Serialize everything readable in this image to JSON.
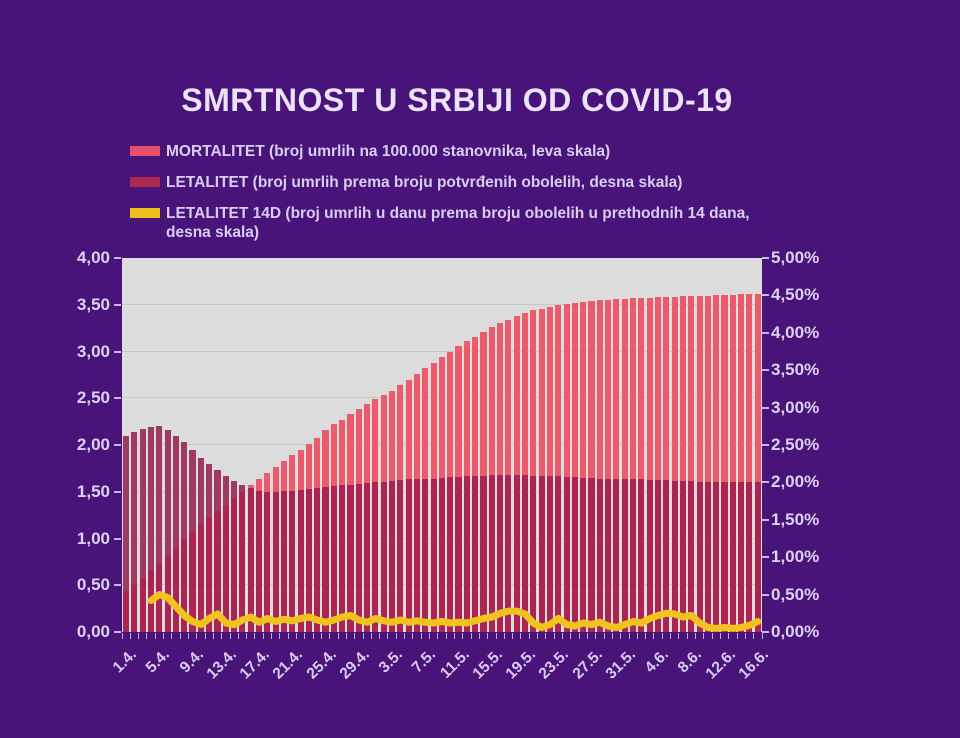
{
  "title": "SMRTNOST U SRBIJI OD COVID-19",
  "background_color": "#481479",
  "text_color": "#d9cdf0",
  "legend": {
    "items": [
      {
        "swatch": "mortalitet-swatch",
        "color": "#e8506a",
        "label": "MORTALITET (broj umrlih na 100.000 stanovnika, leva skala)"
      },
      {
        "swatch": "letalitet-swatch",
        "color": "#aa2a52",
        "label": "LETALITET (broj umrlih prema broju potvrđenih obolelih, desna skala)"
      },
      {
        "swatch": "letalitet-14d-swatch",
        "color": "#f0c020",
        "label": "LETALITET 14D (broj umrlih u danu prema broju obolelih u prethodnih 14 dana, desna skala)"
      }
    ]
  },
  "chart_data": {
    "type": "bar",
    "subtype": "overlaid daily bars (two scales) + line",
    "title": "SMRTNOST U SRBIJI OD COVID-19",
    "plot_background": "#dcdcdc",
    "gridlines": "horizontal every 0.5 of left axis",
    "overlap_color": "#ac2452",
    "left_axis": {
      "min": 0,
      "max": 4,
      "tick_labels": [
        "4,00",
        "3,50",
        "3,00",
        "2,50",
        "2,00",
        "1,50",
        "1,00",
        "0,50",
        "0,00"
      ]
    },
    "right_axis": {
      "min": 0,
      "max": 5,
      "tick_labels": [
        "5,00%",
        "4,50%",
        "4,00%",
        "3,50%",
        "3,00%",
        "2,50%",
        "2,00%",
        "1,50%",
        "1,00%",
        "0,50%",
        "0,00%"
      ]
    },
    "x_tick_labels": [
      "1.4.",
      "5.4.",
      "9.4.",
      "13.4.",
      "17.4.",
      "21.4.",
      "25.4.",
      "29.4.",
      "3.5.",
      "7.5.",
      "11.5.",
      "15.5.",
      "19.5.",
      "23.5.",
      "27.5.",
      "31.5.",
      "4.6.",
      "8.6.",
      "12.6.",
      "16.6."
    ],
    "x_label_every_n_days": 4,
    "series": [
      {
        "name": "MORTALITET",
        "type": "bar",
        "axis": "left",
        "color": "#ec5b6d",
        "values": [
          0.44,
          0.5,
          0.58,
          0.66,
          0.74,
          0.82,
          0.9,
          0.99,
          1.07,
          1.15,
          1.22,
          1.29,
          1.36,
          1.43,
          1.5,
          1.57,
          1.64,
          1.7,
          1.77,
          1.83,
          1.89,
          1.95,
          2.01,
          2.07,
          2.16,
          2.22,
          2.27,
          2.33,
          2.38,
          2.44,
          2.49,
          2.54,
          2.58,
          2.64,
          2.7,
          2.76,
          2.82,
          2.88,
          2.94,
          3.0,
          3.06,
          3.11,
          3.16,
          3.21,
          3.26,
          3.3,
          3.34,
          3.38,
          3.41,
          3.44,
          3.46,
          3.48,
          3.5,
          3.51,
          3.52,
          3.53,
          3.54,
          3.55,
          3.55,
          3.56,
          3.56,
          3.57,
          3.57,
          3.57,
          3.58,
          3.58,
          3.58,
          3.59,
          3.59,
          3.59,
          3.59,
          3.6,
          3.6,
          3.6,
          3.61,
          3.61,
          3.62
        ]
      },
      {
        "name": "LETALITET",
        "type": "bar",
        "axis": "right",
        "color": "#9e3a64",
        "values": [
          2.62,
          2.67,
          2.71,
          2.74,
          2.75,
          2.7,
          2.62,
          2.54,
          2.44,
          2.33,
          2.24,
          2.16,
          2.09,
          2.02,
          1.97,
          1.92,
          1.88,
          1.87,
          1.87,
          1.88,
          1.89,
          1.9,
          1.91,
          1.93,
          1.94,
          1.95,
          1.96,
          1.97,
          1.98,
          1.99,
          2.0,
          2.01,
          2.02,
          2.03,
          2.04,
          2.04,
          2.05,
          2.05,
          2.06,
          2.07,
          2.07,
          2.08,
          2.08,
          2.09,
          2.1,
          2.1,
          2.1,
          2.1,
          2.1,
          2.09,
          2.09,
          2.08,
          2.08,
          2.07,
          2.07,
          2.06,
          2.06,
          2.05,
          2.05,
          2.05,
          2.04,
          2.04,
          2.04,
          2.03,
          2.03,
          2.03,
          2.02,
          2.02,
          2.02,
          2.01,
          2.01,
          2.01,
          2.0,
          2.0,
          2.0,
          2.0,
          2.0
        ]
      },
      {
        "name": "LETALITET 14D",
        "type": "line",
        "axis": "right",
        "color": "#f2c31c",
        "values": [
          null,
          null,
          null,
          0.42,
          0.5,
          0.46,
          0.34,
          0.22,
          0.14,
          0.1,
          0.18,
          0.24,
          0.12,
          0.1,
          0.16,
          0.2,
          0.13,
          0.18,
          0.14,
          0.17,
          0.15,
          0.18,
          0.2,
          0.16,
          0.13,
          0.16,
          0.2,
          0.22,
          0.16,
          0.13,
          0.18,
          0.15,
          0.13,
          0.16,
          0.13,
          0.15,
          0.13,
          0.12,
          0.14,
          0.12,
          0.13,
          0.12,
          0.15,
          0.18,
          0.2,
          0.25,
          0.28,
          0.28,
          0.24,
          0.12,
          0.06,
          0.1,
          0.18,
          0.1,
          0.08,
          0.12,
          0.1,
          0.13,
          0.08,
          0.06,
          0.1,
          0.14,
          0.12,
          0.18,
          0.22,
          0.25,
          0.24,
          0.2,
          0.22,
          0.12,
          0.06,
          0.05,
          0.06,
          0.05,
          0.06,
          0.09,
          0.14
        ]
      }
    ]
  }
}
